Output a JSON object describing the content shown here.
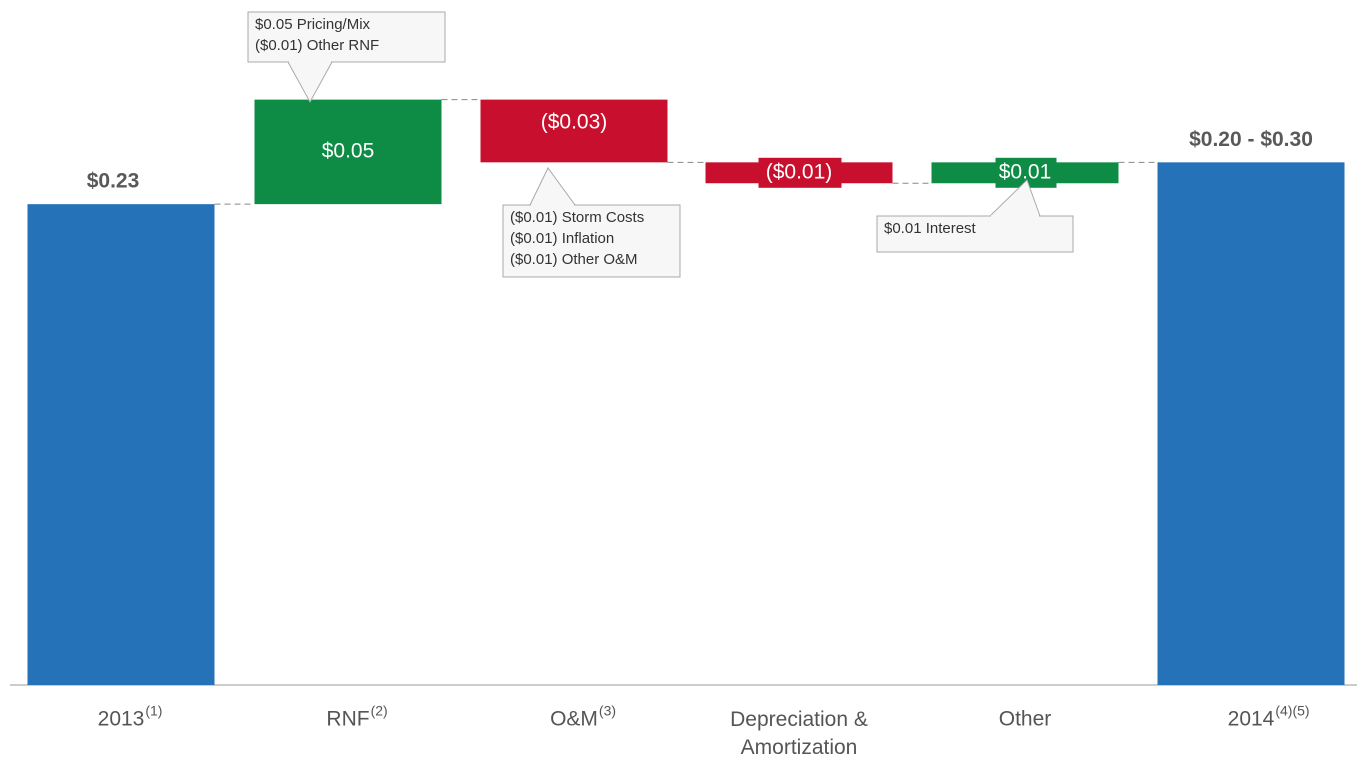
{
  "chart_data": {
    "type": "waterfall",
    "categories": [
      "2013",
      "RNF",
      "O&M",
      "Depreciation & Amortization",
      "Other",
      "2014"
    ],
    "footnotes": [
      "(1)",
      "(2)",
      "(3)",
      null,
      null,
      "(4)(5)"
    ],
    "measure": [
      "total",
      "relative",
      "relative",
      "relative",
      "relative",
      "total"
    ],
    "values": [
      0.23,
      0.05,
      -0.03,
      -0.01,
      0.01,
      0.25
    ],
    "value_labels": [
      "$0.23",
      "$0.05",
      "($0.03)",
      "($0.01)",
      "$0.01",
      "$0.20 - $0.30"
    ],
    "colors": {
      "total": "#2672b8",
      "increase": "#0e8c45",
      "decrease": "#c8102e"
    },
    "ylim": [
      0,
      0.32
    ],
    "annotations": [
      {
        "lines": [
          "$0.05 Pricing/Mix",
          "($0.01) Other RNF"
        ]
      },
      {
        "lines": [
          "($0.01) Storm Costs",
          "($0.01) Inflation",
          "($0.01) Other O&M"
        ]
      },
      {
        "lines": [
          "$0.01 Interest"
        ]
      }
    ]
  }
}
